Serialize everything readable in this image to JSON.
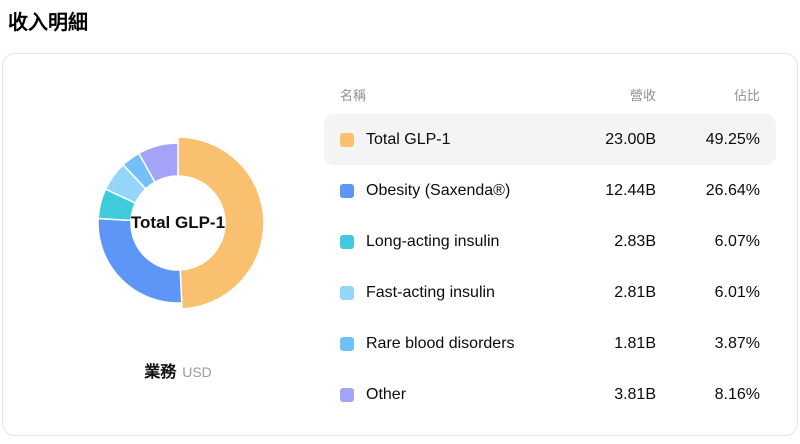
{
  "page": {
    "title": "收入明細"
  },
  "chart_data": {
    "type": "pie",
    "subtype": "donut",
    "center_label": "Total GLP-1",
    "dimension_label": "業務",
    "unit_label": "USD",
    "categories": [
      "Total GLP-1",
      "Obesity (Saxenda®)",
      "Long-acting insulin",
      "Fast-acting insulin",
      "Rare blood disorders",
      "Other"
    ],
    "values_billion_usd": [
      23.0,
      12.44,
      2.83,
      2.81,
      1.81,
      3.81
    ],
    "percentages": [
      49.25,
      26.64,
      6.07,
      6.01,
      3.87,
      8.16
    ],
    "colors": [
      "#F9C06F",
      "#5E96F7",
      "#40CBDD",
      "#94D5FA",
      "#71C1F8",
      "#A3A4F7"
    ],
    "highlighted_index": 0,
    "start_angle_deg": 0,
    "direction": "clockwise",
    "legend_position": "table-right"
  },
  "table": {
    "columns": [
      {
        "label": "名稱",
        "align": "left"
      },
      {
        "label": "營收",
        "align": "right"
      },
      {
        "label": "佔比",
        "align": "right"
      }
    ],
    "rows": [
      {
        "name": "Total GLP-1",
        "revenue": "23.00B",
        "share": "49.25%",
        "color": "#F9C06F",
        "highlighted": true
      },
      {
        "name": "Obesity (Saxenda®)",
        "revenue": "12.44B",
        "share": "26.64%",
        "color": "#5E96F7",
        "highlighted": false
      },
      {
        "name": "Long-acting insulin",
        "revenue": "2.83B",
        "share": "6.07%",
        "color": "#40CBDD",
        "highlighted": false
      },
      {
        "name": "Fast-acting insulin",
        "revenue": "2.81B",
        "share": "6.01%",
        "color": "#94D5FA",
        "highlighted": false
      },
      {
        "name": "Rare blood disorders",
        "revenue": "1.81B",
        "share": "3.87%",
        "color": "#71C1F8",
        "highlighted": false
      },
      {
        "name": "Other",
        "revenue": "3.81B",
        "share": "8.16%",
        "color": "#A3A4F7",
        "highlighted": false
      }
    ]
  }
}
